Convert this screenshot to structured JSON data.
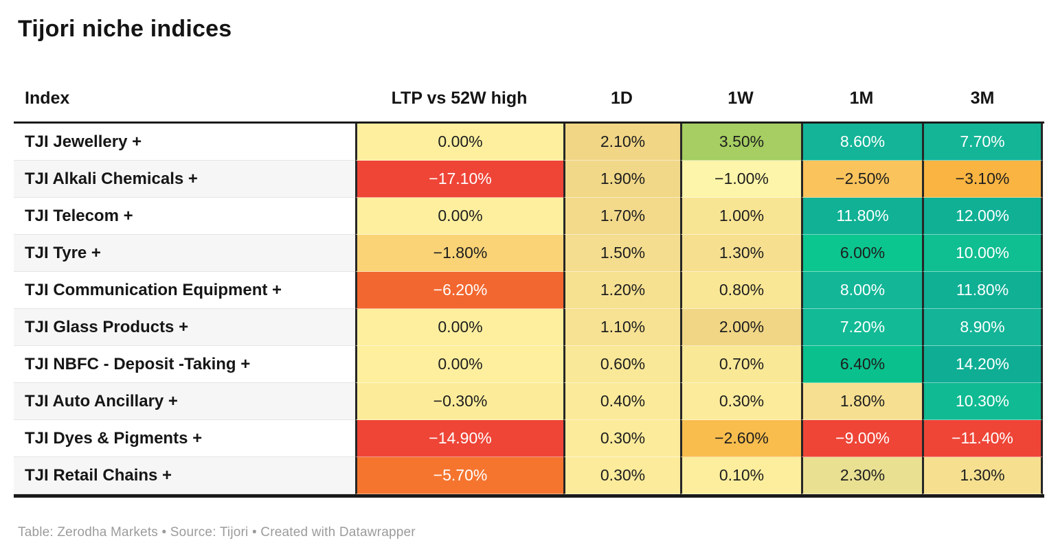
{
  "title": "Tijori niche indices",
  "header": {
    "columns": [
      "Index",
      "LTP vs 52W high",
      "1D",
      "1W",
      "1M",
      "3M"
    ]
  },
  "table": {
    "rows": [
      {
        "index": "TJI Jewellery +",
        "cells": [
          {
            "text": "0.00%",
            "bg": "#fdef9e",
            "fg": "#1d1d1d"
          },
          {
            "text": "2.10%",
            "bg": "#f0d685",
            "fg": "#1d1d1d"
          },
          {
            "text": "3.50%",
            "bg": "#a6ce62",
            "fg": "#1d1d1d"
          },
          {
            "text": "8.60%",
            "bg": "#13b497",
            "fg": "#ffffff"
          },
          {
            "text": "7.70%",
            "bg": "#14b597",
            "fg": "#ffffff"
          }
        ]
      },
      {
        "index": "TJI Alkali Chemicals +",
        "cells": [
          {
            "text": "−17.10%",
            "bg": "#ee4537",
            "fg": "#ffffff"
          },
          {
            "text": "1.90%",
            "bg": "#f1d888",
            "fg": "#1d1d1d"
          },
          {
            "text": "−1.00%",
            "bg": "#fdf5a9",
            "fg": "#1d1d1d"
          },
          {
            "text": "−2.50%",
            "bg": "#fac35c",
            "fg": "#1d1d1d"
          },
          {
            "text": "−3.10%",
            "bg": "#f9b441",
            "fg": "#1d1d1d"
          }
        ]
      },
      {
        "index": "TJI Telecom +",
        "cells": [
          {
            "text": "0.00%",
            "bg": "#fdef9e",
            "fg": "#1d1d1d"
          },
          {
            "text": "1.70%",
            "bg": "#f3da8b",
            "fg": "#1d1d1d"
          },
          {
            "text": "1.00%",
            "bg": "#f8e593",
            "fg": "#1d1d1d"
          },
          {
            "text": "11.80%",
            "bg": "#10b195",
            "fg": "#ffffff"
          },
          {
            "text": "12.00%",
            "bg": "#10b095",
            "fg": "#ffffff"
          }
        ]
      },
      {
        "index": "TJI Tyre +",
        "cells": [
          {
            "text": "−1.80%",
            "bg": "#fad377",
            "fg": "#1d1d1d"
          },
          {
            "text": "1.50%",
            "bg": "#f4dd8e",
            "fg": "#1d1d1d"
          },
          {
            "text": "1.30%",
            "bg": "#f6e090",
            "fg": "#1d1d1d"
          },
          {
            "text": "6.00%",
            "bg": "#0bc78f",
            "fg": "#1d1d1d"
          },
          {
            "text": "10.00%",
            "bg": "#0fbe91",
            "fg": "#ffffff"
          }
        ]
      },
      {
        "index": "TJI Communication Equipment +",
        "cells": [
          {
            "text": "−6.20%",
            "bg": "#f2672f",
            "fg": "#ffffff"
          },
          {
            "text": "1.20%",
            "bg": "#f6e191",
            "fg": "#1d1d1d"
          },
          {
            "text": "0.80%",
            "bg": "#f9e795",
            "fg": "#1d1d1d"
          },
          {
            "text": "8.00%",
            "bg": "#13b697",
            "fg": "#ffffff"
          },
          {
            "text": "11.80%",
            "bg": "#10b095",
            "fg": "#ffffff"
          }
        ]
      },
      {
        "index": "TJI Glass Products +",
        "cells": [
          {
            "text": "0.00%",
            "bg": "#fdef9e",
            "fg": "#1d1d1d"
          },
          {
            "text": "1.10%",
            "bg": "#f7e293",
            "fg": "#1d1d1d"
          },
          {
            "text": "2.00%",
            "bg": "#f0d685",
            "fg": "#1d1d1d"
          },
          {
            "text": "7.20%",
            "bg": "#12bb96",
            "fg": "#ffffff"
          },
          {
            "text": "8.90%",
            "bg": "#13b497",
            "fg": "#ffffff"
          }
        ]
      },
      {
        "index": "TJI NBFC - Deposit -Taking +",
        "cells": [
          {
            "text": "0.00%",
            "bg": "#fdef9e",
            "fg": "#1d1d1d"
          },
          {
            "text": "0.60%",
            "bg": "#f9e897",
            "fg": "#1d1d1d"
          },
          {
            "text": "0.70%",
            "bg": "#f9e896",
            "fg": "#1d1d1d"
          },
          {
            "text": "6.40%",
            "bg": "#0ac18d",
            "fg": "#1d1d1d"
          },
          {
            "text": "14.20%",
            "bg": "#0fae94",
            "fg": "#ffffff"
          }
        ]
      },
      {
        "index": "TJI Auto Ancillary +",
        "cells": [
          {
            "text": "−0.30%",
            "bg": "#fcec9a",
            "fg": "#1d1d1d"
          },
          {
            "text": "0.40%",
            "bg": "#fbea9a",
            "fg": "#1d1d1d"
          },
          {
            "text": "0.30%",
            "bg": "#fbeb9b",
            "fg": "#1d1d1d"
          },
          {
            "text": "1.80%",
            "bg": "#f6df90",
            "fg": "#1d1d1d"
          },
          {
            "text": "10.30%",
            "bg": "#10ba92",
            "fg": "#ffffff"
          }
        ]
      },
      {
        "index": "TJI Dyes & Pigments +",
        "cells": [
          {
            "text": "−14.90%",
            "bg": "#ee4537",
            "fg": "#ffffff"
          },
          {
            "text": "0.30%",
            "bg": "#fbeb9b",
            "fg": "#1d1d1d"
          },
          {
            "text": "−2.60%",
            "bg": "#f9bd4e",
            "fg": "#1d1d1d"
          },
          {
            "text": "−9.00%",
            "bg": "#ee4537",
            "fg": "#ffffff"
          },
          {
            "text": "−11.40%",
            "bg": "#ee4537",
            "fg": "#ffffff"
          }
        ]
      },
      {
        "index": "TJI Retail Chains +",
        "cells": [
          {
            "text": "−5.70%",
            "bg": "#f5752f",
            "fg": "#ffffff"
          },
          {
            "text": "0.30%",
            "bg": "#fbeb9b",
            "fg": "#1d1d1d"
          },
          {
            "text": "0.10%",
            "bg": "#fcee9d",
            "fg": "#1d1d1d"
          },
          {
            "text": "2.30%",
            "bg": "#e9e092",
            "fg": "#1d1d1d"
          },
          {
            "text": "1.30%",
            "bg": "#f6e090",
            "fg": "#1d1d1d"
          }
        ]
      }
    ]
  },
  "footer": {
    "attribution": "Table: Zerodha Markets • Source: Tijori • Created with Datawrapper"
  },
  "colors": {
    "header_rule": "#1a1a1a",
    "column_border": "#262626",
    "row_alt_bg": "#f6f6f6",
    "negative_strong": "#ee4537",
    "negative_mid": "#f5752f",
    "neutral": "#fdef9e",
    "positive_mid": "#a6ce62",
    "positive_strong": "#13b497",
    "footer_text": "#9b9b9b"
  },
  "chart_data": {
    "type": "table",
    "title": "Tijori niche indices",
    "columns": [
      "Index",
      "LTP vs 52W high",
      "1D",
      "1W",
      "1M",
      "3M"
    ],
    "units": "%",
    "rows": [
      [
        "TJI Jewellery +",
        0.0,
        2.1,
        3.5,
        8.6,
        7.7
      ],
      [
        "TJI Alkali Chemicals +",
        -17.1,
        1.9,
        -1.0,
        -2.5,
        -3.1
      ],
      [
        "TJI Telecom +",
        0.0,
        1.7,
        1.0,
        11.8,
        12.0
      ],
      [
        "TJI Tyre +",
        -1.8,
        1.5,
        1.3,
        6.0,
        10.0
      ],
      [
        "TJI Communication Equipment +",
        -6.2,
        1.2,
        0.8,
        8.0,
        11.8
      ],
      [
        "TJI Glass Products +",
        0.0,
        1.1,
        2.0,
        7.2,
        8.9
      ],
      [
        "TJI NBFC - Deposit -Taking +",
        0.0,
        0.6,
        0.7,
        6.4,
        14.2
      ],
      [
        "TJI Auto Ancillary +",
        -0.3,
        0.4,
        0.3,
        1.8,
        10.3
      ],
      [
        "TJI Dyes & Pigments +",
        -14.9,
        0.3,
        -2.6,
        -9.0,
        -11.4
      ],
      [
        "TJI Retail Chains +",
        -5.7,
        0.3,
        0.1,
        2.3,
        1.3
      ]
    ],
    "layout": {
      "heatmap": "red-yellow-green diverging per cell",
      "grid": "heavy rules above and below body, dark vertical separators between value columns"
    }
  }
}
